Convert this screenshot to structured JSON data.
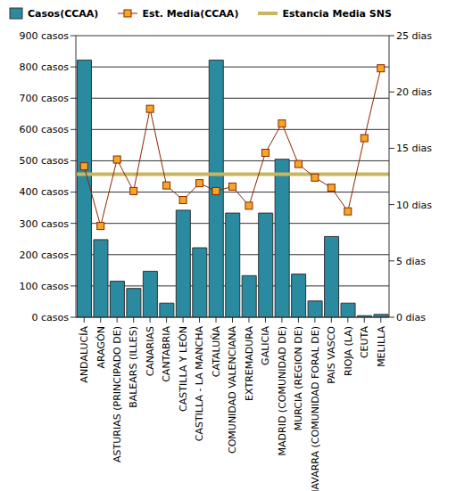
{
  "chart_data": {
    "type": "bar",
    "categories": [
      "ANDALUCÍA",
      "ARAGÓN",
      "ASTURIAS (PRINCIPADO DE)",
      "BALEARS (ILLES)",
      "CANARIAS",
      "CANTABRIA",
      "CASTILLA Y LEÓN",
      "CASTILLA - LA MANCHA",
      "CATALUÑA",
      "COMUNIDAD VALENCIANA",
      "EXTREMADURA",
      "GALICIA",
      "MADRID (COMUNIDAD DE)",
      "MURCIA (REGION DE)",
      "NAVARRA (COMUNIDAD FORAL DE)",
      "PAIS VASCO",
      "RIOJA (LA)",
      "CEUTA",
      "MELILLA"
    ],
    "series": [
      {
        "name": "Casos(CCAA)",
        "type": "bar",
        "color": "#2a8a9f",
        "values": [
          822,
          248,
          115,
          92,
          147,
          45,
          342,
          222,
          822,
          333,
          133,
          333,
          505,
          138,
          52,
          258,
          45,
          5,
          9
        ]
      },
      {
        "name": "Est. Media(CCAA)",
        "type": "line",
        "axis": "y2",
        "color": "#8b2500",
        "marker": "square",
        "values": [
          13.4,
          8.1,
          14.0,
          11.2,
          18.5,
          11.7,
          10.4,
          11.9,
          11.2,
          11.6,
          9.9,
          14.6,
          17.2,
          13.6,
          12.4,
          11.5,
          9.4,
          15.9,
          22.1
        ]
      }
    ],
    "reference_lines": [
      {
        "name": "Estancia Media SNS",
        "value": 12.7,
        "axis": "y2",
        "color": "#c8b560"
      }
    ],
    "ylim": [
      0,
      900
    ],
    "yticks": [
      {
        "value": 0,
        "label": "0 casos"
      },
      {
        "value": 100,
        "label": "100 casos"
      },
      {
        "value": 200,
        "label": "200 casos"
      },
      {
        "value": 300,
        "label": "300 casos"
      },
      {
        "value": 400,
        "label": "400 casos"
      },
      {
        "value": 500,
        "label": "500 casos"
      },
      {
        "value": 600,
        "label": "600 casos"
      },
      {
        "value": 700,
        "label": "700 casos"
      },
      {
        "value": 800,
        "label": "800 casos"
      },
      {
        "value": 900,
        "label": "900 casos"
      }
    ],
    "y2lim": [
      0,
      25
    ],
    "y2ticks": [
      {
        "value": 0,
        "label": "0 dias"
      },
      {
        "value": 5,
        "label": "5 dias"
      },
      {
        "value": 10,
        "label": "10 dias"
      },
      {
        "value": 15,
        "label": "15 dias"
      },
      {
        "value": 20,
        "label": "20 dias"
      },
      {
        "value": 25,
        "label": "25 dias"
      }
    ],
    "grid": true
  }
}
